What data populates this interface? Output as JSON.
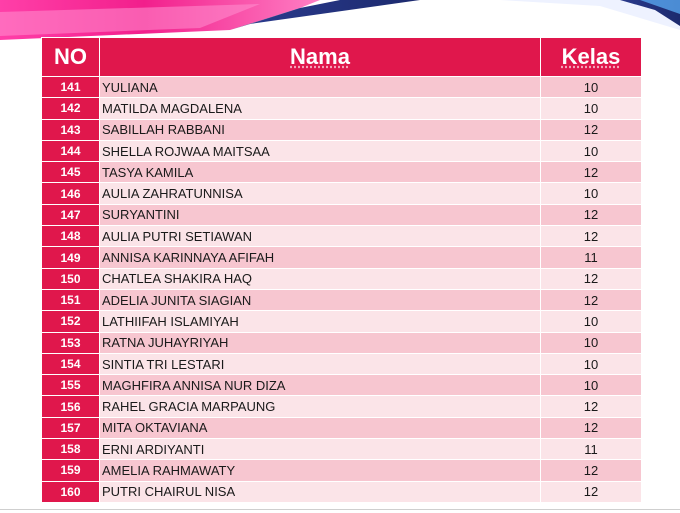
{
  "colors": {
    "header": "#e0174c",
    "row_dark": "#f7c6d0",
    "row_light": "#fbe4e8"
  },
  "table": {
    "headers": {
      "no": "NO",
      "nama": "Nama",
      "kelas": "Kelas"
    },
    "rows": [
      {
        "no": "141",
        "nama": "YULIANA",
        "kelas": "10"
      },
      {
        "no": "142",
        "nama": "MATILDA MAGDALENA",
        "kelas": "10"
      },
      {
        "no": "143",
        "nama": "SABILLAH RABBANI",
        "kelas": "12"
      },
      {
        "no": "144",
        "nama": "SHELLA ROJWAA MAITSAA",
        "kelas": "10"
      },
      {
        "no": "145",
        "nama": "TASYA KAMILA",
        "kelas": "12"
      },
      {
        "no": "146",
        "nama": "AULIA ZAHRATUNNISA",
        "kelas": "10"
      },
      {
        "no": "147",
        "nama": "SURYANTINI",
        "kelas": "12"
      },
      {
        "no": "148",
        "nama": "AULIA PUTRI SETIAWAN",
        "kelas": "12"
      },
      {
        "no": "149",
        "nama": "ANNISA KARINNAYA AFIFAH",
        "kelas": "11"
      },
      {
        "no": "150",
        "nama": "CHATLEA SHAKIRA HAQ",
        "kelas": "12"
      },
      {
        "no": "151",
        "nama": "ADELIA JUNITA SIAGIAN",
        "kelas": "12"
      },
      {
        "no": "152",
        "nama": "LATHIIFAH ISLAMIYAH",
        "kelas": "10"
      },
      {
        "no": "153",
        "nama": "RATNA JUHAYRIYAH",
        "kelas": "10"
      },
      {
        "no": "154",
        "nama": "SINTIA TRI LESTARI",
        "kelas": "10"
      },
      {
        "no": "155",
        "nama": "MAGHFIRA ANNISA NUR DIZA",
        "kelas": "10"
      },
      {
        "no": "156",
        "nama": "RAHEL GRACIA MARPAUNG",
        "kelas": "12"
      },
      {
        "no": "157",
        "nama": "MITA OKTAVIANA",
        "kelas": "12"
      },
      {
        "no": "158",
        "nama": "ERNI ARDIYANTI",
        "kelas": "11"
      },
      {
        "no": "159",
        "nama": "AMELIA RAHMAWATY",
        "kelas": "12"
      },
      {
        "no": "160",
        "nama": "PUTRI CHAIRUL NISA",
        "kelas": "12"
      }
    ]
  }
}
